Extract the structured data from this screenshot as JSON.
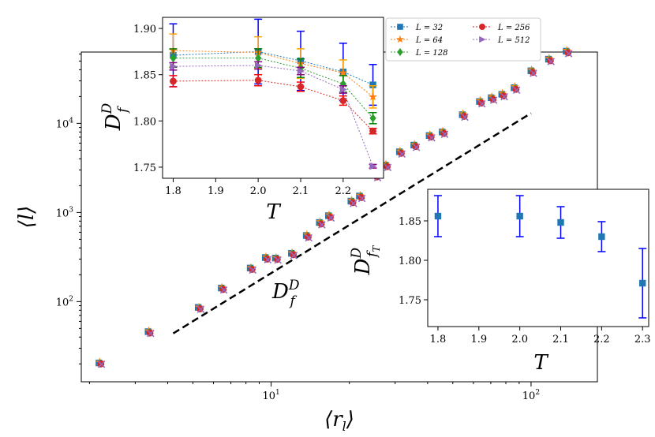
{
  "chart_data": [
    {
      "type": "scatter",
      "name": "main",
      "xscale": "log",
      "yscale": "log",
      "xlim": [
        1.86,
        180
      ],
      "ylim": [
        12.6,
        63100
      ],
      "xlabel": "⟨r_l⟩",
      "ylabel": "⟨l⟩",
      "xticks": [
        {
          "value": 10,
          "label": "10^1"
        },
        {
          "value": 100,
          "label": "10^2"
        }
      ],
      "yticks": [
        {
          "value": 100,
          "label": "10^2"
        },
        {
          "value": 1000,
          "label": "10^3"
        },
        {
          "value": 10000,
          "label": "10^4"
        }
      ],
      "x": [
        2.2,
        3.4,
        5.3,
        6.5,
        8.4,
        9.6,
        10.5,
        12.1,
        13.8,
        15.5,
        16.8,
        20.5,
        22.1,
        25.4,
        27.8,
        31.5,
        35.8,
        41,
        46,
        55,
        64,
        71,
        78,
        87,
        101,
        118,
        138
      ],
      "series": [
        {
          "name": "L = 32",
          "color": "#1f77b4",
          "marker": "square",
          "y": [
            20.5,
            46,
            86,
            142,
            238,
            312,
            308,
            348,
            552,
            772,
            920,
            1340,
            1530,
            2610,
            3400,
            4800,
            5700,
            7300,
            8000,
            12500,
            17600,
            19400,
            21200,
            25100,
            38900,
            52500,
            64500
          ]
        },
        {
          "name": "L = 64",
          "color": "#ff7f0e",
          "marker": "star",
          "y": [
            21,
            47,
            87,
            145,
            242,
            318,
            312,
            354,
            565,
            790,
            940,
            1370,
            1560,
            2680,
            3480,
            4900,
            5800,
            7450,
            8200,
            12800,
            18100,
            19900,
            21800,
            25800,
            39900,
            53800,
            66000
          ]
        },
        {
          "name": "L = 128",
          "color": "#2ca02c",
          "marker": "diamond",
          "y": [
            20.2,
            45,
            84,
            139,
            234,
            306,
            302,
            342,
            540,
            755,
            900,
            1310,
            1500,
            2550,
            3330,
            4700,
            5600,
            7150,
            7850,
            12200,
            17200,
            18900,
            20700,
            24500,
            38000,
            51300,
            63000
          ]
        },
        {
          "name": "L = 256",
          "color": "#d62728",
          "marker": "circle",
          "y": [
            20,
            44.5,
            83,
            137,
            230,
            300,
            298,
            336,
            530,
            742,
            885,
            1290,
            1470,
            2510,
            3270,
            4620,
            5500,
            7020,
            7700,
            12000,
            16900,
            18600,
            20300,
            24100,
            37300,
            50400,
            61900
          ]
        },
        {
          "name": "L = 512",
          "color": "#9467bd",
          "marker": "x",
          "y": [
            19.8,
            44,
            82,
            135,
            226,
            295,
            293,
            330,
            520,
            728,
            868,
            1265,
            1440,
            2460,
            3200,
            4530,
            5380,
            6880,
            7550,
            11750,
            16550,
            18200,
            19900,
            23600,
            36500,
            49400,
            60600
          ]
        }
      ],
      "reference_line": {
        "x": [
          4.2,
          100
        ],
        "y": [
          44,
          13000
        ],
        "style": "dashed",
        "label": "D_f^D"
      }
    },
    {
      "type": "scatter",
      "name": "inset-top-left",
      "xlim": [
        1.775,
        2.295
      ],
      "ylim": [
        1.738,
        1.912
      ],
      "xlabel": "T",
      "ylabel": "D_f^D",
      "xticks": [
        1.8,
        1.9,
        2.0,
        2.1,
        2.2
      ],
      "xtick_labels": [
        "1.8",
        "1.9",
        "2.0",
        "2.1",
        "2.2"
      ],
      "yticks": [
        1.75,
        1.8,
        1.85,
        1.9
      ],
      "ytick_labels": [
        "1.75",
        "1.80",
        "1.85",
        "1.90"
      ],
      "x": [
        1.8,
        2.0,
        2.1,
        2.2,
        2.27
      ],
      "series": [
        {
          "name": "L = 32",
          "color": "#1f77b4",
          "marker": "square",
          "ecolor": "#0000ff",
          "y": [
            1.871,
            1.875,
            1.865,
            1.853,
            1.839
          ],
          "err": [
            0.034,
            0.035,
            0.032,
            0.031,
            0.022
          ]
        },
        {
          "name": "L = 64",
          "color": "#ff7f0e",
          "marker": "star",
          "ecolor": "#ffa500",
          "y": [
            1.876,
            1.874,
            1.862,
            1.852,
            1.826
          ],
          "err": [
            0.018,
            0.017,
            0.016,
            0.014,
            0.012
          ]
        },
        {
          "name": "L = 128",
          "color": "#2ca02c",
          "marker": "diamond",
          "ecolor": "#008000",
          "y": [
            1.868,
            1.868,
            1.857,
            1.84,
            1.803
          ],
          "err": [
            0.01,
            0.01,
            0.01,
            0.009,
            0.006
          ]
        },
        {
          "name": "L = 256",
          "color": "#d62728",
          "marker": "circle",
          "ecolor": "#ff0000",
          "y": [
            1.843,
            1.844,
            1.837,
            1.822,
            1.789
          ],
          "err": [
            0.006,
            0.006,
            0.005,
            0.005,
            0.003
          ]
        },
        {
          "name": "L = 512",
          "color": "#9467bd",
          "marker": "triangle-right",
          "ecolor": "#8b008b",
          "y": [
            1.859,
            1.86,
            1.854,
            1.834,
            1.751
          ],
          "err": [
            0.004,
            0.004,
            0.004,
            0.004,
            0.002
          ]
        }
      ],
      "legend": {
        "placement": "upper-right-outside",
        "columns": 2
      }
    },
    {
      "type": "scatter",
      "name": "inset-bottom-right",
      "xlim": [
        1.775,
        2.315
      ],
      "ylim": [
        1.716,
        1.89
      ],
      "xlabel": "T",
      "ylabel": "D_{f_T}^D",
      "xticks": [
        1.8,
        1.9,
        2.0,
        2.1,
        2.2,
        2.3
      ],
      "xtick_labels": [
        "1.8",
        "1.9",
        "2.0",
        "2.1",
        "2.2",
        "2.3"
      ],
      "yticks": [
        1.75,
        1.8,
        1.85
      ],
      "ytick_labels": [
        "1.75",
        "1.80",
        "1.85"
      ],
      "series": [
        {
          "name": "D_fT",
          "color": "#1f77b4",
          "marker": "square",
          "ecolor": "#0000ff",
          "x": [
            1.8,
            2.0,
            2.1,
            2.2,
            2.3
          ],
          "y": [
            1.856,
            1.856,
            1.848,
            1.83,
            1.771
          ],
          "err": [
            0.026,
            0.026,
            0.02,
            0.019,
            0.044
          ]
        }
      ]
    }
  ]
}
